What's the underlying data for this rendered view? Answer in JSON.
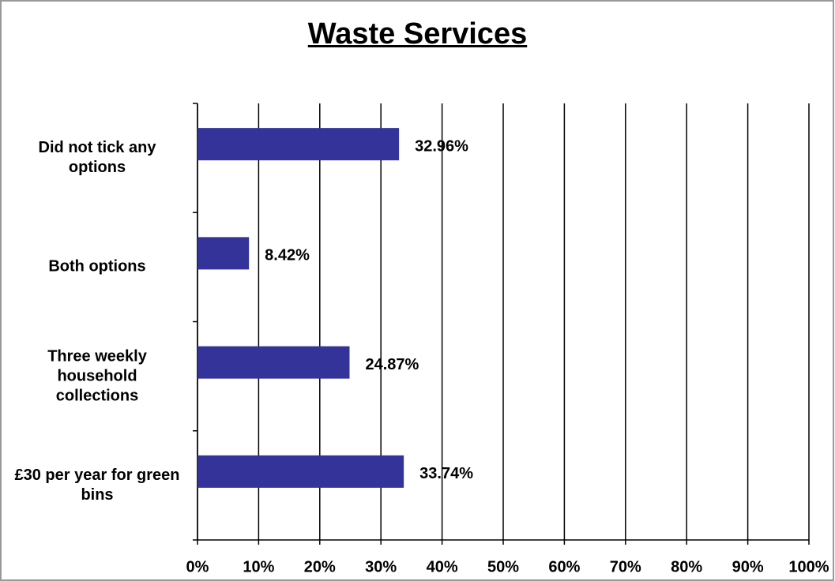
{
  "chart_data": {
    "type": "bar",
    "orientation": "horizontal",
    "title": "Waste Services",
    "categories": [
      "Did not tick any options",
      "Both options",
      "Three weekly household collections",
      "£30 per year for green bins"
    ],
    "values": [
      32.96,
      8.42,
      24.87,
      33.74
    ],
    "value_labels": [
      "32.96%",
      "8.42%",
      "24.87%",
      "33.74%"
    ],
    "color": "#333399",
    "xlim": [
      0,
      100
    ],
    "xticks": [
      {
        "value": 0,
        "label": "0%"
      },
      {
        "value": 10,
        "label": "10%"
      },
      {
        "value": 20,
        "label": "20%"
      },
      {
        "value": 30,
        "label": "30%"
      },
      {
        "value": 40,
        "label": "40%"
      },
      {
        "value": 50,
        "label": "50%"
      },
      {
        "value": 60,
        "label": "60%"
      },
      {
        "value": 70,
        "label": "70%"
      },
      {
        "value": 80,
        "label": "80%"
      },
      {
        "value": 90,
        "label": "90%"
      },
      {
        "value": 100,
        "label": "100%"
      }
    ],
    "grid": true
  }
}
